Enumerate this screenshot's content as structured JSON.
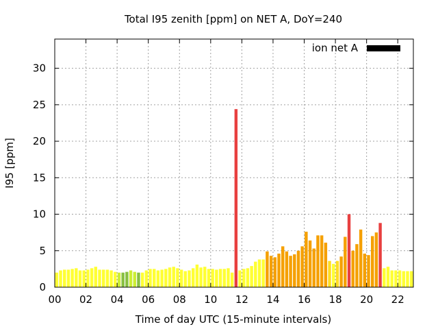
{
  "chart_data": {
    "type": "bar",
    "title": "Total I95 zenith [ppm] on NET A, DoY=240",
    "xlabel": "Time of day UTC (15-minute intervals)",
    "ylabel": "I95 [ppm]",
    "xlim": [
      0,
      22.75
    ],
    "ylim": [
      0,
      34
    ],
    "x_ticks": [
      "00",
      "02",
      "04",
      "06",
      "08",
      "10",
      "12",
      "14",
      "16",
      "18",
      "20",
      "22"
    ],
    "y_ticks": [
      "0",
      "5",
      "10",
      "15",
      "20",
      "25",
      "30"
    ],
    "grid": true,
    "legend_position": "top-right",
    "series": [
      {
        "name": "ion net A",
        "legend_color": "#000000",
        "x": [
          0.0,
          0.25,
          0.5,
          0.75,
          1.0,
          1.25,
          1.5,
          1.75,
          2.0,
          2.25,
          2.5,
          2.75,
          3.0,
          3.25,
          3.5,
          3.75,
          4.0,
          4.25,
          4.5,
          4.75,
          5.0,
          5.25,
          5.5,
          5.75,
          6.0,
          6.25,
          6.5,
          6.75,
          7.0,
          7.25,
          7.5,
          7.75,
          8.0,
          8.25,
          8.5,
          8.75,
          9.0,
          9.25,
          9.5,
          9.75,
          10.0,
          10.25,
          10.5,
          10.75,
          11.0,
          11.25,
          11.5,
          11.75,
          12.0,
          12.25,
          12.5,
          12.75,
          13.0,
          13.25,
          13.5,
          13.75,
          14.0,
          14.25,
          14.5,
          14.75,
          15.0,
          15.25,
          15.5,
          15.75,
          16.0,
          16.25,
          16.5,
          16.75,
          17.0,
          17.25,
          17.5,
          17.75,
          18.0,
          18.25,
          18.5,
          18.75,
          19.0,
          19.25,
          19.5,
          19.75,
          20.0,
          20.25,
          20.5,
          20.75,
          21.0,
          21.25,
          21.5,
          21.75,
          22.0,
          22.25,
          22.5,
          22.75
        ],
        "values": [
          2.0,
          2.3,
          2.4,
          2.4,
          2.5,
          2.6,
          2.3,
          2.3,
          2.4,
          2.6,
          2.8,
          2.4,
          2.4,
          2.4,
          2.3,
          2.1,
          2.0,
          2.0,
          2.1,
          2.3,
          2.1,
          2.0,
          2.0,
          2.3,
          2.5,
          2.5,
          2.3,
          2.4,
          2.5,
          2.7,
          2.8,
          2.6,
          2.4,
          2.2,
          2.3,
          2.6,
          3.1,
          2.7,
          2.8,
          2.5,
          2.5,
          2.4,
          2.5,
          2.5,
          2.6,
          2.0,
          24.4,
          2.3,
          2.5,
          2.6,
          2.9,
          3.5,
          3.8,
          3.8,
          4.9,
          4.3,
          4.1,
          4.6,
          5.6,
          4.9,
          4.3,
          4.5,
          5.0,
          5.6,
          7.6,
          6.4,
          5.3,
          7.1,
          7.1,
          6.1,
          3.6,
          3.2,
          3.6,
          4.2,
          6.9,
          10.0,
          5.0,
          5.9,
          7.9,
          4.6,
          4.4,
          7.0,
          7.5,
          8.8,
          2.6,
          2.8,
          2.3,
          2.3,
          2.3,
          2.2,
          2.2,
          2.2
        ],
        "colors": [
          "#ffff33",
          "#ffff33",
          "#ffff33",
          "#ffff33",
          "#ffff33",
          "#ffff33",
          "#ffff33",
          "#ffff33",
          "#ffff33",
          "#ffff33",
          "#ffff33",
          "#ffff33",
          "#ffff33",
          "#ffff33",
          "#ffff33",
          "#ffff33",
          "#ccee33",
          "#88c040",
          "#88c040",
          "#ccee33",
          "#ccee33",
          "#88c040",
          "#ffff33",
          "#ffff33",
          "#ffff33",
          "#ffff33",
          "#ffff33",
          "#ffff33",
          "#ffff33",
          "#ffff33",
          "#ffff33",
          "#ffff33",
          "#ffff33",
          "#ffff33",
          "#ffff33",
          "#ffff33",
          "#ffff33",
          "#ffff33",
          "#ffff33",
          "#ffff33",
          "#ffff33",
          "#ffff33",
          "#ffff33",
          "#ffff33",
          "#ffff33",
          "#ffff33",
          "#e84040",
          "#ffff33",
          "#ffff33",
          "#ffff33",
          "#ffff33",
          "#ffff33",
          "#ffff33",
          "#ffff33",
          "#f5a000",
          "#f5a000",
          "#f5a000",
          "#f5a000",
          "#f5a000",
          "#f5a000",
          "#f5a000",
          "#f5a000",
          "#f5a000",
          "#f5a000",
          "#f5a000",
          "#f5a000",
          "#f5a000",
          "#f5a000",
          "#f5a000",
          "#f5a000",
          "#ffdd22",
          "#ffff33",
          "#ffdd22",
          "#f5a000",
          "#f5a000",
          "#e84040",
          "#f5a000",
          "#f5a000",
          "#f5a000",
          "#f5a000",
          "#f5a000",
          "#f5a000",
          "#f5a000",
          "#e84040",
          "#ffff33",
          "#ffff33",
          "#ffff33",
          "#ffff33",
          "#ffff33",
          "#ffff33",
          "#ffff33",
          "#ffff33"
        ]
      }
    ]
  }
}
